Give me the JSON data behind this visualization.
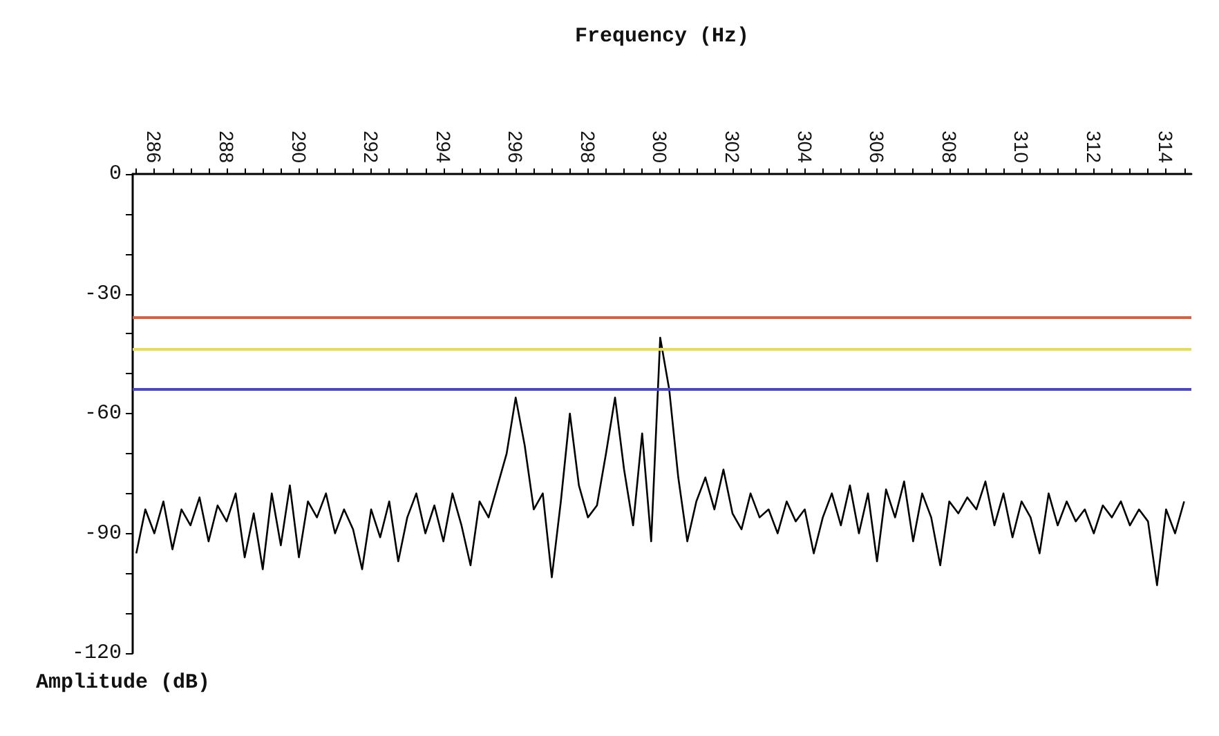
{
  "chart_data": {
    "type": "line",
    "xlabel": "Frequency (Hz)",
    "ylabel": "Amplitude (dB)",
    "xlim": [
      285.4,
      314.7
    ],
    "ylim": [
      -120,
      0
    ],
    "xticks": [
      {
        "value": 285.5,
        "label": null
      },
      286,
      {
        "value": 286.5,
        "label": null
      },
      {
        "value": 287,
        "label": null
      },
      {
        "value": 287.5,
        "label": null
      },
      288,
      {
        "value": 288.5,
        "label": null
      },
      {
        "value": 289,
        "label": null
      },
      {
        "value": 289.5,
        "label": null
      },
      290,
      {
        "value": 290.5,
        "label": null
      },
      {
        "value": 291,
        "label": null
      },
      {
        "value": 291.5,
        "label": null
      },
      292,
      {
        "value": 292.5,
        "label": null
      },
      {
        "value": 293,
        "label": null
      },
      {
        "value": 293.5,
        "label": null
      },
      294,
      {
        "value": 294.5,
        "label": null
      },
      {
        "value": 295,
        "label": null
      },
      {
        "value": 295.5,
        "label": null
      },
      296,
      {
        "value": 296.5,
        "label": null
      },
      {
        "value": 297,
        "label": null
      },
      {
        "value": 297.5,
        "label": null
      },
      298,
      {
        "value": 298.5,
        "label": null
      },
      {
        "value": 299,
        "label": null
      },
      {
        "value": 299.5,
        "label": null
      },
      300,
      {
        "value": 300.5,
        "label": null
      },
      {
        "value": 301,
        "label": null
      },
      {
        "value": 301.5,
        "label": null
      },
      302,
      {
        "value": 302.5,
        "label": null
      },
      {
        "value": 303,
        "label": null
      },
      {
        "value": 303.5,
        "label": null
      },
      304,
      {
        "value": 304.5,
        "label": null
      },
      {
        "value": 305,
        "label": null
      },
      {
        "value": 305.5,
        "label": null
      },
      306,
      {
        "value": 306.5,
        "label": null
      },
      {
        "value": 307,
        "label": null
      },
      {
        "value": 307.5,
        "label": null
      },
      308,
      {
        "value": 308.5,
        "label": null
      },
      {
        "value": 309,
        "label": null
      },
      {
        "value": 309.5,
        "label": null
      },
      310,
      {
        "value": 310.5,
        "label": null
      },
      {
        "value": 311,
        "label": null
      },
      {
        "value": 311.5,
        "label": null
      },
      312,
      {
        "value": 312.5,
        "label": null
      },
      {
        "value": 313,
        "label": null
      },
      {
        "value": 313.5,
        "label": null
      },
      314,
      {
        "value": 314.5,
        "label": null
      }
    ],
    "yticks": [
      0,
      {
        "value": -10,
        "label": null
      },
      {
        "value": -20,
        "label": null
      },
      -30,
      {
        "value": -40,
        "label": null
      },
      {
        "value": -50,
        "label": null
      },
      -60,
      {
        "value": -70,
        "label": null
      },
      {
        "value": -80,
        "label": null
      },
      -90,
      {
        "value": -100,
        "label": null
      },
      {
        "value": -110,
        "label": null
      },
      -120
    ],
    "x": [
      285.5,
      285.75,
      286,
      286.25,
      286.5,
      286.75,
      287,
      287.25,
      287.5,
      287.75,
      288,
      288.25,
      288.5,
      288.75,
      289,
      289.25,
      289.5,
      289.75,
      290,
      290.25,
      290.5,
      290.75,
      291,
      291.25,
      291.5,
      291.75,
      292,
      292.25,
      292.5,
      292.75,
      293,
      293.25,
      293.5,
      293.75,
      294,
      294.25,
      294.5,
      294.75,
      295,
      295.25,
      295.5,
      295.75,
      296,
      296.25,
      296.5,
      296.75,
      297,
      297.25,
      297.5,
      297.75,
      298,
      298.25,
      298.5,
      298.75,
      299,
      299.25,
      299.5,
      299.75,
      300,
      300.25,
      300.5,
      300.75,
      301,
      301.25,
      301.5,
      301.75,
      302,
      302.25,
      302.5,
      302.75,
      303,
      303.25,
      303.5,
      303.75,
      304,
      304.25,
      304.5,
      304.75,
      305,
      305.25,
      305.5,
      305.75,
      306,
      306.25,
      306.5,
      306.75,
      307,
      307.25,
      307.5,
      307.75,
      308,
      308.25,
      308.5,
      308.75,
      309,
      309.25,
      309.5,
      309.75,
      310,
      310.25,
      310.5,
      310.75,
      311,
      311.25,
      311.5,
      311.75,
      312,
      312.25,
      312.5,
      312.75,
      313,
      313.25,
      313.5,
      313.75,
      314,
      314.25,
      314.5
    ],
    "series": [
      {
        "color": "#000000",
        "values": [
          -95,
          -84,
          -90,
          -82,
          -94,
          -84,
          -88,
          -81,
          -92,
          -83,
          -87,
          -80,
          -96,
          -85,
          -99,
          -80,
          -93,
          -78,
          -96,
          -82,
          -86,
          -80,
          -90,
          -84,
          -89,
          -99,
          -84,
          -91,
          -82,
          -97,
          -86,
          -80,
          -90,
          -83,
          -92,
          -80,
          -88,
          -98,
          -82,
          -86,
          -78,
          -70,
          -56,
          -68,
          -84,
          -80,
          -101,
          -82,
          -60,
          -78,
          -86,
          -83,
          -70,
          -56,
          -74,
          -88,
          -65,
          -92,
          -41,
          -54,
          -76,
          -92,
          -82,
          -76,
          -84,
          -74,
          -85,
          -89,
          -80,
          -86,
          -84,
          -90,
          -82,
          -87,
          -84,
          -95,
          -86,
          -80,
          -88,
          -78,
          -90,
          -80,
          -97,
          -79,
          -86,
          -77,
          -92,
          -80,
          -86,
          -98,
          -82,
          -85,
          -81,
          -84,
          -77,
          -88,
          -80,
          -91,
          -82,
          -86,
          -95,
          -80,
          -88,
          -82,
          -87,
          -84,
          -90,
          -83,
          -86,
          -82,
          -88,
          -84,
          -87,
          -103,
          -84,
          -90,
          -82
        ]
      }
    ],
    "ref_lines": [
      {
        "axis": "y",
        "value": -36,
        "color": "#d9603e"
      },
      {
        "axis": "y",
        "value": -44,
        "color": "#e6dc5a"
      },
      {
        "axis": "y",
        "value": -54,
        "color": "#4a48c8"
      }
    ],
    "grid": false,
    "marker": "none",
    "line_style": "solid"
  }
}
